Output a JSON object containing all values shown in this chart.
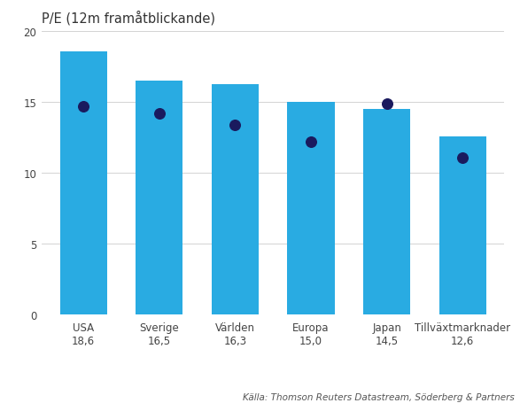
{
  "title": "P/E (12m framåtblickande)",
  "cat_names": [
    "USA",
    "Sverige",
    "Världen",
    "Europa",
    "Japan",
    "Tillväxtmarknader"
  ],
  "cat_values_str": [
    "18,6",
    "16,5",
    "16,3",
    "15,0",
    "14,5",
    "12,6"
  ],
  "bar_values": [
    18.6,
    16.5,
    16.3,
    15.0,
    14.5,
    12.6
  ],
  "dot_values": [
    14.7,
    14.2,
    13.4,
    12.2,
    14.9,
    11.1
  ],
  "bar_color": "#29ABE2",
  "dot_color": "#1a1a5e",
  "ylim": [
    0,
    20
  ],
  "yticks": [
    0,
    5,
    10,
    15,
    20
  ],
  "source_text": "Källa: Thomson Reuters Datastream, Söderberg & Partners",
  "title_fontsize": 10.5,
  "tick_fontsize": 8.5,
  "legend_fontsize": 9,
  "source_fontsize": 7.5,
  "background_color": "#ffffff",
  "grid_color": "#cccccc"
}
